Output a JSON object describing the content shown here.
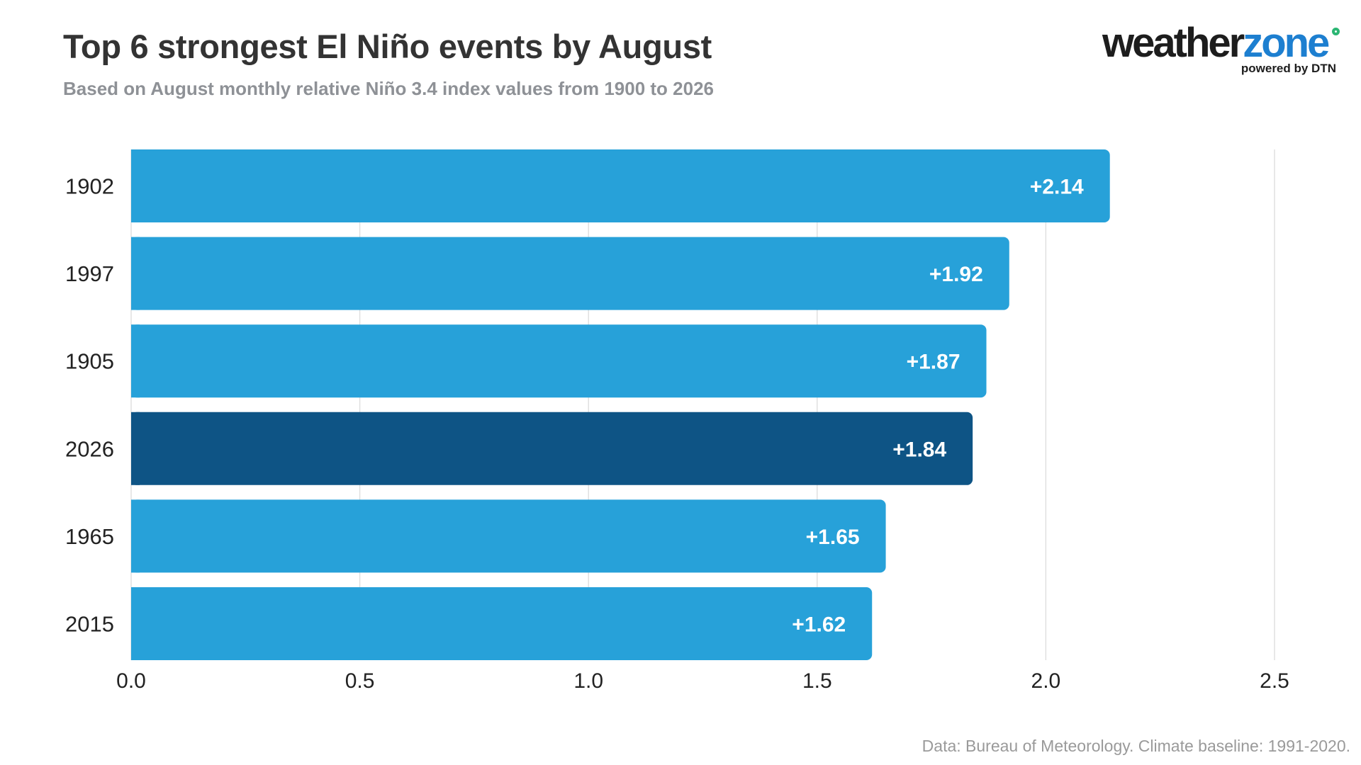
{
  "chart_data": {
    "type": "bar",
    "orientation": "horizontal",
    "title": "Top 6 strongest El Niño events by August",
    "subtitle": "Based on August monthly relative Niño 3.4 index values from 1900 to 2026",
    "categories": [
      "1902",
      "1997",
      "1905",
      "2026",
      "1965",
      "2015"
    ],
    "values": [
      2.14,
      1.92,
      1.87,
      1.84,
      1.65,
      1.62
    ],
    "data_labels": [
      "+2.14",
      "+1.92",
      "+1.87",
      "+1.84",
      "+1.65",
      "+1.62"
    ],
    "highlight_category": "2026",
    "xlim": [
      0,
      2.5
    ],
    "xticks": [
      0.0,
      0.5,
      1.0,
      1.5,
      2.0,
      2.5
    ],
    "xtick_labels": [
      "0.0",
      "0.5",
      "1.0",
      "1.5",
      "2.0",
      "2.5"
    ],
    "grid": true,
    "colors": {
      "bar": "#27a1d9",
      "highlight": "#0e5485",
      "grid": "#dcdcdc",
      "label": "#ffffff"
    }
  },
  "logo": {
    "word_main": "weather",
    "word_accent": "zone",
    "tagline": "powered by DTN"
  },
  "source": "Data: Bureau of Meteorology. Climate baseline: 1991-2020."
}
